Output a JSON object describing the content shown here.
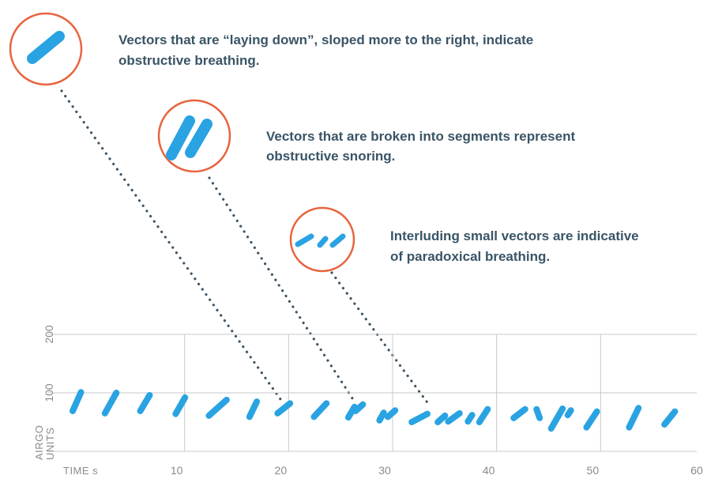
{
  "chart_data": {
    "type": "vector",
    "annotations": [
      {
        "lines": [
          "Vectors that are “laying down”, sloped more to the right, indicate",
          "obstructive breathing."
        ]
      },
      {
        "lines": [
          "Vectors that are broken into segments represent",
          "obstructive snoring."
        ]
      },
      {
        "lines": [
          "Interluding small vectors are indicative",
          "of paradoxical breathing."
        ]
      }
    ],
    "xlabel": "TIME s",
    "ylabel": [
      "AIRGO",
      "UNITS"
    ],
    "xlim": [
      0,
      60
    ],
    "xticks": [
      10,
      20,
      30,
      40,
      50,
      60
    ],
    "ylim": [
      0,
      200
    ],
    "yticks": [
      100,
      200
    ],
    "grid": true,
    "color": "#29a3e2",
    "vectors": [
      [
        0,
        69,
        0.8,
        101
      ],
      [
        3.1,
        65,
        4.2,
        100
      ],
      [
        6.5,
        69,
        7.4,
        96
      ],
      [
        9.9,
        64,
        10.8,
        92
      ],
      [
        13.1,
        61,
        14.8,
        88
      ],
      [
        17.0,
        59,
        17.7,
        85
      ],
      [
        19.7,
        65,
        20.9,
        82
      ],
      [
        23.2,
        59,
        24.4,
        82
      ],
      [
        26.5,
        58,
        27.1,
        76
      ],
      [
        27.2,
        69,
        27.9,
        80
      ],
      [
        29.5,
        53,
        29.9,
        66
      ],
      [
        30.3,
        59,
        31.0,
        70
      ],
      [
        32.6,
        50,
        34.1,
        64
      ],
      [
        35.1,
        50,
        35.8,
        61
      ],
      [
        36.1,
        51,
        37.2,
        65
      ],
      [
        38.0,
        51,
        38.4,
        62
      ],
      [
        39.1,
        50,
        39.9,
        72
      ],
      [
        42.4,
        57,
        43.5,
        72
      ],
      [
        44.6,
        72,
        44.9,
        57
      ],
      [
        46.0,
        39,
        47.1,
        73
      ],
      [
        47.6,
        62,
        47.9,
        70
      ],
      [
        49.4,
        41,
        50.4,
        68
      ],
      [
        53.5,
        41,
        54.4,
        74
      ],
      [
        56.9,
        46,
        57.9,
        68
      ]
    ]
  }
}
